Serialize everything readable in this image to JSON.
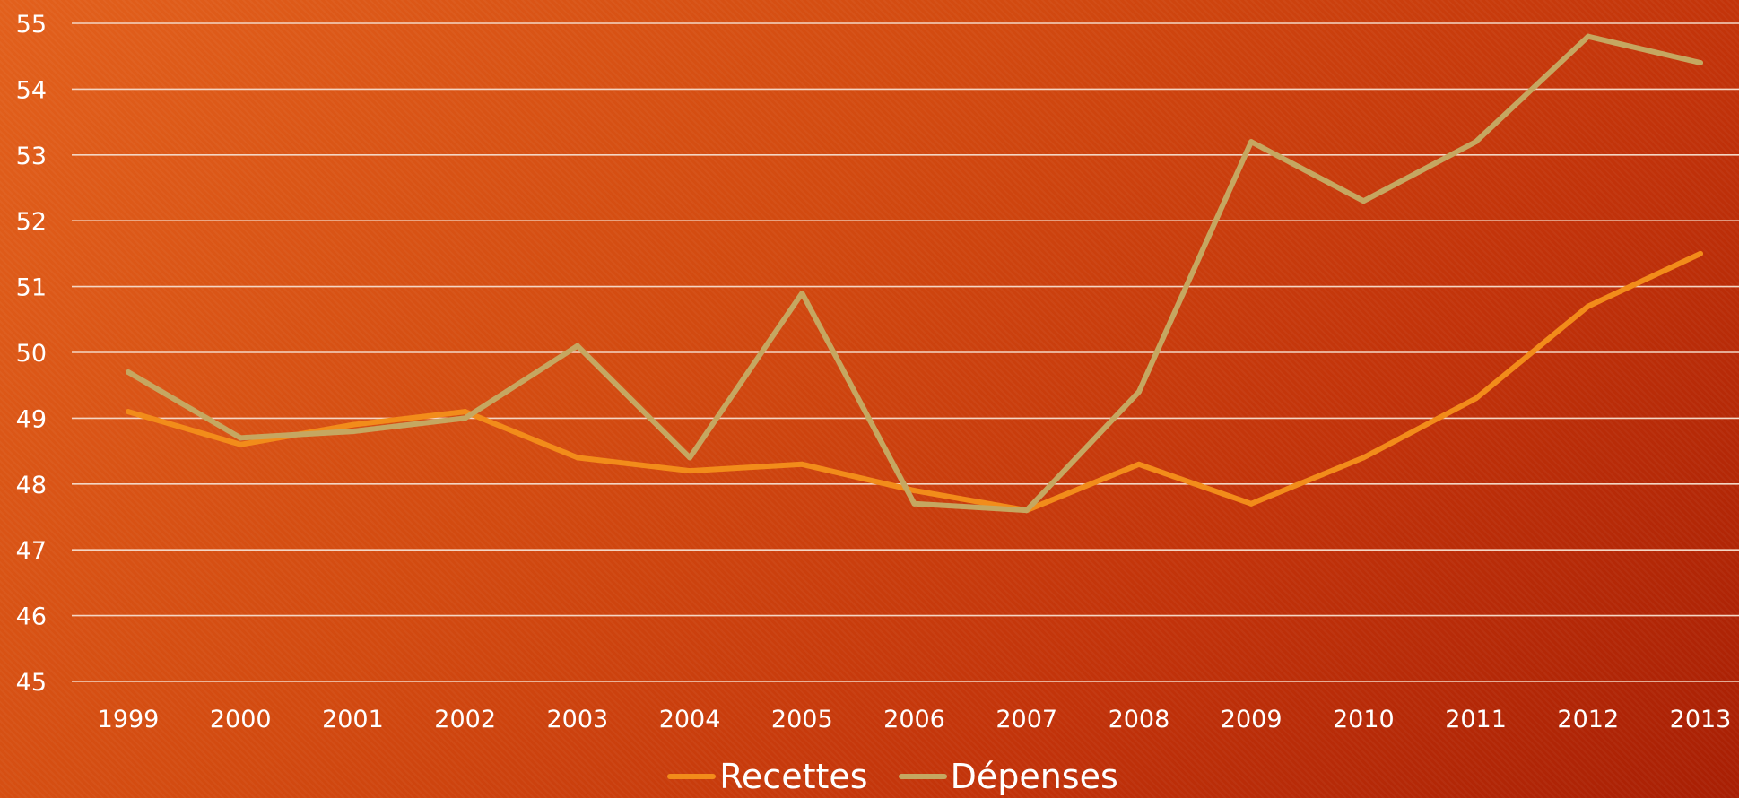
{
  "chart_data": {
    "type": "line",
    "categories": [
      "1999",
      "2000",
      "2001",
      "2002",
      "2003",
      "2004",
      "2005",
      "2006",
      "2007",
      "2008",
      "2009",
      "2010",
      "2011",
      "2012",
      "2013"
    ],
    "series": [
      {
        "name": "Recettes",
        "color": "#f28c1a",
        "values": [
          49.1,
          48.6,
          48.9,
          49.1,
          48.4,
          48.2,
          48.3,
          47.9,
          47.6,
          48.3,
          47.7,
          48.4,
          49.3,
          50.7,
          51.5
        ]
      },
      {
        "name": "Dépenses",
        "color": "#c5a761",
        "values": [
          49.7,
          48.7,
          48.8,
          49.0,
          50.1,
          48.4,
          50.9,
          47.7,
          47.6,
          49.4,
          53.2,
          52.3,
          53.2,
          54.8,
          54.4
        ]
      }
    ],
    "y_ticks": [
      "45",
      "46",
      "47",
      "48",
      "49",
      "50",
      "51",
      "52",
      "53",
      "54",
      "55"
    ],
    "ylim": [
      45,
      55
    ],
    "grid": "horizontal",
    "legend_position": "bottom"
  },
  "colors": {
    "grid": "#f4d6c4",
    "text": "#ffffff"
  }
}
